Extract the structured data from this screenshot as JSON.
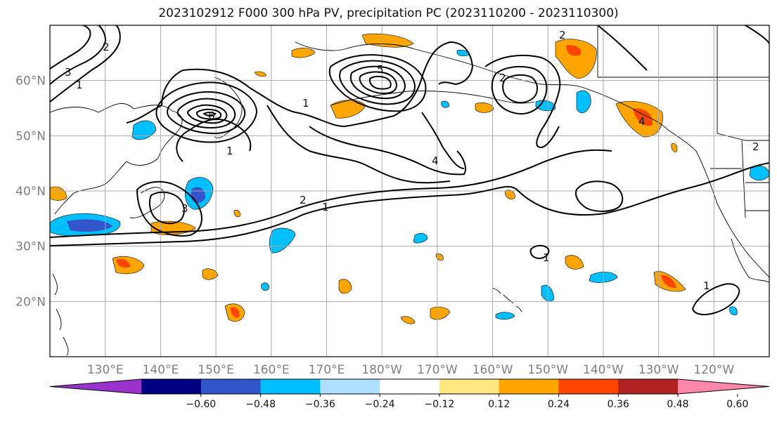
{
  "title": "2023102912 F000 300 hPa PV, precipitation PC (2023110200 - 2023110300)",
  "map": {
    "lat_ticks": [
      {
        "label": "60°N",
        "value": 60
      },
      {
        "label": "50°N",
        "value": 50
      },
      {
        "label": "40°N",
        "value": 40
      },
      {
        "label": "30°N",
        "value": 30
      },
      {
        "label": "20°N",
        "value": 20
      }
    ],
    "lon_ticks": [
      {
        "label": "130°E",
        "value": 130
      },
      {
        "label": "140°E",
        "value": 140
      },
      {
        "label": "150°E",
        "value": 150
      },
      {
        "label": "160°E",
        "value": 160
      },
      {
        "label": "170°E",
        "value": 170
      },
      {
        "label": "180°W",
        "value": 180
      },
      {
        "label": "170°W",
        "value": 190
      },
      {
        "label": "160°W",
        "value": 200
      },
      {
        "label": "150°W",
        "value": 210
      },
      {
        "label": "140°W",
        "value": 220
      },
      {
        "label": "130°W",
        "value": 230
      },
      {
        "label": "120°W",
        "value": 240
      }
    ],
    "lon_range": [
      120,
      250
    ],
    "lat_range": [
      10,
      70
    ],
    "contour_labels": [
      "1",
      "2",
      "3",
      "4",
      "5",
      "6"
    ]
  },
  "colorbar": {
    "colors": [
      "#9933cc",
      "#000080",
      "#3355cc",
      "#00bfff",
      "#b0e0ff",
      "#ffffff",
      "#ffe880",
      "#ffa500",
      "#ff4500",
      "#b22222",
      "#ff88aa"
    ],
    "tick_labels": [
      "−0.60",
      "−0.48",
      "−0.36",
      "−0.24",
      "−0.12",
      "0.12",
      "0.24",
      "0.36",
      "0.48",
      "0.60"
    ]
  }
}
